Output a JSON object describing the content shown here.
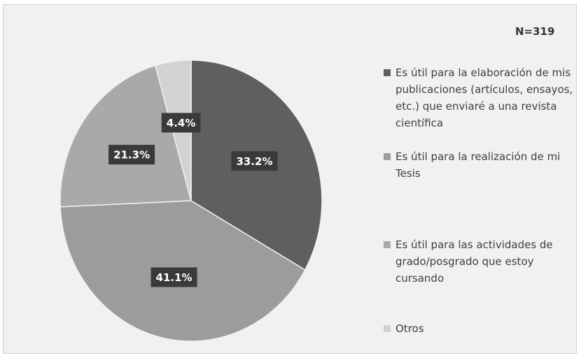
{
  "chart_data": {
    "type": "pie",
    "annotation": "N=319",
    "categories": [
      "Es útil para la elaboración de mis publicaciones (artículos, ensayos, etc.) que enviaré a una revista científica",
      "Es útil para la realización de mi Tesis",
      "Es útil para las actividades de grado/posgrado que estoy cursando",
      "Otros"
    ],
    "values": [
      33.2,
      41.1,
      21.3,
      4.4
    ],
    "value_labels": [
      "33.2%",
      "41.1%",
      "21.3%",
      "4.4%"
    ],
    "colors": [
      "#5f5f5f",
      "#9c9c9c",
      "#a9a9a9",
      "#d2d2d2"
    ],
    "legend": "right"
  }
}
